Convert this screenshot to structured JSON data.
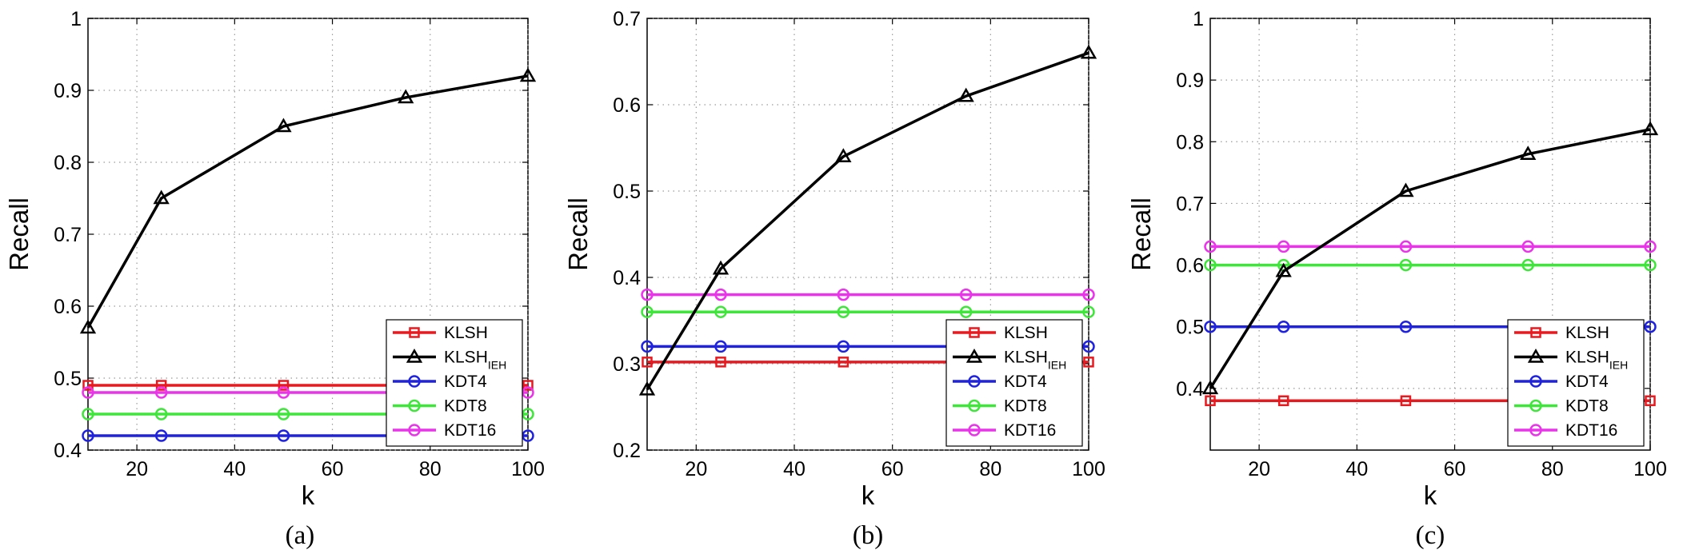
{
  "colors": {
    "KLSH": "#e8191f",
    "KLSH_IEH": "#000000",
    "KDT4": "#1f23e0",
    "KDT8": "#3ee63a",
    "KDT16": "#ea33ea"
  },
  "chart_data": [
    {
      "type": "line",
      "panel_label": "(a)",
      "xlabel": "k",
      "ylabel": "Recall",
      "xlim": [
        10,
        100
      ],
      "ylim": [
        0.4,
        1.0
      ],
      "xticks": [
        "20",
        "40",
        "60",
        "80",
        "100"
      ],
      "yticks": [
        "0.4",
        "0.5",
        "0.6",
        "0.7",
        "0.8",
        "0.9",
        "1"
      ],
      "grid": true,
      "legend_position": "bottom-right",
      "x": [
        10,
        25,
        50,
        75,
        100
      ],
      "series": [
        {
          "name": "KLSH",
          "sub": "",
          "marker": "square",
          "values": [
            0.49,
            0.49,
            0.49,
            0.49,
            0.49
          ]
        },
        {
          "name": "KLSH",
          "sub": "IEH",
          "marker": "triangle",
          "values": [
            0.57,
            0.75,
            0.85,
            0.89,
            0.92
          ]
        },
        {
          "name": "KDT4",
          "sub": "",
          "marker": "circle",
          "values": [
            0.42,
            0.42,
            0.42,
            0.42,
            0.42
          ]
        },
        {
          "name": "KDT8",
          "sub": "",
          "marker": "circle",
          "values": [
            0.45,
            0.45,
            0.45,
            0.45,
            0.45
          ]
        },
        {
          "name": "KDT16",
          "sub": "",
          "marker": "circle",
          "values": [
            0.48,
            0.48,
            0.48,
            0.48,
            0.48
          ]
        }
      ]
    },
    {
      "type": "line",
      "panel_label": "(b)",
      "xlabel": "k",
      "ylabel": "Recall",
      "xlim": [
        10,
        100
      ],
      "ylim": [
        0.2,
        0.7
      ],
      "xticks": [
        "20",
        "40",
        "60",
        "80",
        "100"
      ],
      "yticks": [
        "0.2",
        "0.3",
        "0.4",
        "0.5",
        "0.6",
        "0.7"
      ],
      "grid": true,
      "legend_position": "bottom-right",
      "x": [
        10,
        25,
        50,
        75,
        100
      ],
      "series": [
        {
          "name": "KLSH",
          "sub": "",
          "marker": "square",
          "values": [
            0.302,
            0.302,
            0.302,
            0.302,
            0.302
          ]
        },
        {
          "name": "KLSH",
          "sub": "IEH",
          "marker": "triangle",
          "values": [
            0.27,
            0.41,
            0.54,
            0.61,
            0.66
          ]
        },
        {
          "name": "KDT4",
          "sub": "",
          "marker": "circle",
          "values": [
            0.32,
            0.32,
            0.32,
            0.32,
            0.32
          ]
        },
        {
          "name": "KDT8",
          "sub": "",
          "marker": "circle",
          "values": [
            0.36,
            0.36,
            0.36,
            0.36,
            0.36
          ]
        },
        {
          "name": "KDT16",
          "sub": "",
          "marker": "circle",
          "values": [
            0.38,
            0.38,
            0.38,
            0.38,
            0.38
          ]
        }
      ]
    },
    {
      "type": "line",
      "panel_label": "(c)",
      "xlabel": "k",
      "ylabel": "Recall",
      "xlim": [
        10,
        100
      ],
      "ylim": [
        0.3,
        1.0
      ],
      "xticks": [
        "20",
        "40",
        "60",
        "80",
        "100"
      ],
      "yticks": [
        "0.4",
        "0.5",
        "0.6",
        "0.7",
        "0.8",
        "0.9",
        "1"
      ],
      "grid": true,
      "legend_position": "bottom-right",
      "x": [
        10,
        25,
        50,
        75,
        100
      ],
      "series": [
        {
          "name": "KLSH",
          "sub": "",
          "marker": "square",
          "values": [
            0.38,
            0.38,
            0.38,
            0.38,
            0.38
          ]
        },
        {
          "name": "KLSH",
          "sub": "IEH",
          "marker": "triangle",
          "values": [
            0.4,
            0.59,
            0.72,
            0.78,
            0.82
          ]
        },
        {
          "name": "KDT4",
          "sub": "",
          "marker": "circle",
          "values": [
            0.5,
            0.5,
            0.5,
            0.5,
            0.5
          ]
        },
        {
          "name": "KDT8",
          "sub": "",
          "marker": "circle",
          "values": [
            0.6,
            0.6,
            0.6,
            0.6,
            0.6
          ]
        },
        {
          "name": "KDT16",
          "sub": "",
          "marker": "circle",
          "values": [
            0.63,
            0.63,
            0.63,
            0.63,
            0.63
          ]
        }
      ]
    }
  ]
}
